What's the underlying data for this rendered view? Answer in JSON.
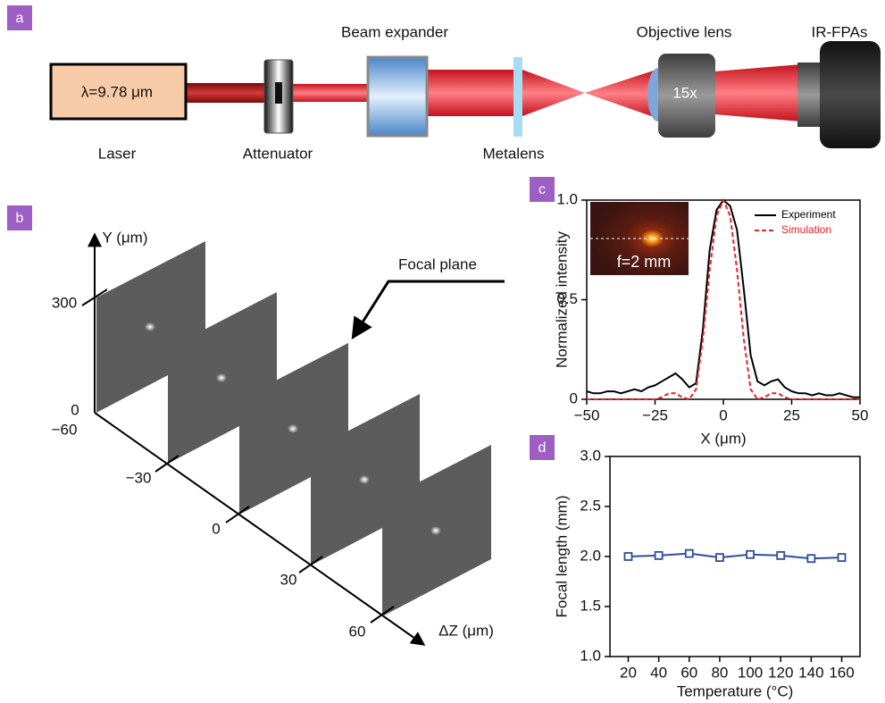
{
  "panel_labels": [
    "a",
    "b",
    "c",
    "d"
  ],
  "setup": {
    "laser": "Laser",
    "wavelength": "λ=9.78 μm",
    "attenuator": "Attenuator",
    "beam_expander": "Beam expander",
    "metalens": "Metalens",
    "objective_lens": "Objective lens",
    "magnification": "15x",
    "detector": "IR-FPAs"
  },
  "focal_scan": {
    "y_axis_label": "Y (μm)",
    "y_ticks": [
      "300",
      "0"
    ],
    "z_axis_label": "ΔZ (μm)",
    "z_ticks": [
      "−60",
      "−30",
      "0",
      "30",
      "60"
    ],
    "annotation": "Focal plane"
  },
  "chart_data": [
    {
      "type": "line",
      "x_label": "X (μm)",
      "y_label": "Normalized intensity",
      "inset_annotation": "f=2 mm",
      "legend": "upper right",
      "x": [
        -50,
        -47.5,
        -45,
        -42.5,
        -40,
        -37.5,
        -35,
        -32.5,
        -30,
        -27.5,
        -25,
        -22.5,
        -20,
        -17.5,
        -15,
        -12.5,
        -10,
        -7.5,
        -5,
        -2.5,
        0,
        2.5,
        5,
        7.5,
        10,
        12.5,
        15,
        17.5,
        20,
        22.5,
        25,
        27.5,
        30,
        32.5,
        35,
        37.5,
        40,
        42.5,
        45,
        47.5,
        50
      ],
      "xlim": [
        -50,
        50
      ],
      "xticks": [
        {
          "value": -50,
          "label": "−50"
        },
        {
          "value": -25,
          "label": "−25"
        },
        0,
        25,
        50
      ],
      "ylim": [
        0,
        1
      ],
      "yticks": [
        0,
        0.5,
        {
          "value": 1,
          "label": "1.0"
        }
      ],
      "series": [
        {
          "name": "Experiment",
          "color": "#000000",
          "dash": "solid",
          "values": [
            0.04,
            0.03,
            0.03,
            0.04,
            0.04,
            0.03,
            0.04,
            0.05,
            0.04,
            0.06,
            0.07,
            0.09,
            0.11,
            0.13,
            0.1,
            0.06,
            0.08,
            0.35,
            0.75,
            0.95,
            1.0,
            0.97,
            0.85,
            0.55,
            0.22,
            0.09,
            0.07,
            0.09,
            0.1,
            0.06,
            0.04,
            0.03,
            0.03,
            0.02,
            0.03,
            0.02,
            0.02,
            0.03,
            0.02,
            0.01,
            0.01
          ]
        },
        {
          "name": "Simulation",
          "color": "#e8202a",
          "dash": "dashed",
          "values": [
            0,
            0,
            0,
            0,
            0,
            0,
            0,
            0,
            0,
            0,
            0,
            0.01,
            0.03,
            0.03,
            0.01,
            0,
            0.05,
            0.3,
            0.65,
            0.92,
            1.0,
            0.92,
            0.65,
            0.3,
            0.05,
            0,
            0.01,
            0.03,
            0.03,
            0.01,
            0,
            0,
            0,
            0,
            0,
            0,
            0,
            0,
            0,
            0,
            0
          ]
        }
      ]
    },
    {
      "type": "line",
      "x_label": "Temperature (°C)",
      "y_label": "Focal length (mm)",
      "x": [
        20,
        40,
        60,
        80,
        100,
        120,
        140,
        160
      ],
      "xlim": [
        8,
        172
      ],
      "xticks": [
        20,
        40,
        60,
        80,
        100,
        120,
        140,
        160
      ],
      "ylim": [
        1,
        3
      ],
      "yticks": [
        {
          "value": 1,
          "label": "1.0"
        },
        1.5,
        {
          "value": 2,
          "label": "2.0"
        },
        2.5,
        {
          "value": 3,
          "label": "3.0"
        }
      ],
      "series": [
        {
          "color": "#2e4d9c",
          "dash": "solid",
          "marker": "square",
          "values": [
            2.0,
            2.01,
            2.03,
            1.99,
            2.02,
            2.01,
            1.98,
            1.99
          ]
        }
      ]
    }
  ]
}
